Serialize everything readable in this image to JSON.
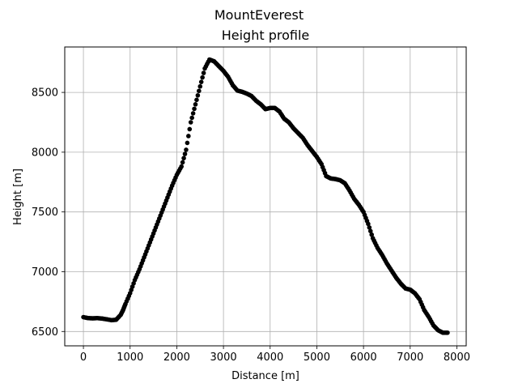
{
  "chart_data": {
    "type": "scatter",
    "suptitle": "MountEverest",
    "title": "Height profile",
    "xlabel": "Distance [m]",
    "ylabel": "Height [m]",
    "xlim": [
      -400,
      8200
    ],
    "ylim": [
      6380,
      8880
    ],
    "xticks": [
      0,
      1000,
      2000,
      3000,
      4000,
      5000,
      6000,
      7000,
      8000
    ],
    "yticks": [
      6500,
      7000,
      7500,
      8000,
      8500
    ],
    "grid": true,
    "legend": "none",
    "marker_color": "#000000",
    "series": [
      {
        "points": [
          [
            0,
            6620
          ],
          [
            100,
            6612
          ],
          [
            200,
            6610
          ],
          [
            300,
            6612
          ],
          [
            400,
            6608
          ],
          [
            500,
            6602
          ],
          [
            600,
            6595
          ],
          [
            700,
            6598
          ],
          [
            800,
            6640
          ],
          [
            850,
            6680
          ],
          [
            900,
            6730
          ],
          [
            1000,
            6820
          ],
          [
            1100,
            6930
          ],
          [
            1200,
            7020
          ],
          [
            1300,
            7120
          ],
          [
            1400,
            7220
          ],
          [
            1500,
            7320
          ],
          [
            1600,
            7420
          ],
          [
            1700,
            7520
          ],
          [
            1800,
            7620
          ],
          [
            1900,
            7720
          ],
          [
            2000,
            7810
          ],
          [
            2100,
            7880
          ],
          [
            2200,
            8020
          ],
          [
            2300,
            8250
          ],
          [
            2400,
            8400
          ],
          [
            2500,
            8550
          ],
          [
            2600,
            8700
          ],
          [
            2700,
            8775
          ],
          [
            2800,
            8760
          ],
          [
            2900,
            8720
          ],
          [
            3000,
            8680
          ],
          [
            3100,
            8630
          ],
          [
            3200,
            8560
          ],
          [
            3300,
            8515
          ],
          [
            3400,
            8505
          ],
          [
            3500,
            8490
          ],
          [
            3600,
            8470
          ],
          [
            3700,
            8430
          ],
          [
            3800,
            8400
          ],
          [
            3900,
            8360
          ],
          [
            4000,
            8370
          ],
          [
            4100,
            8370
          ],
          [
            4200,
            8340
          ],
          [
            4300,
            8280
          ],
          [
            4400,
            8250
          ],
          [
            4500,
            8200
          ],
          [
            4600,
            8160
          ],
          [
            4700,
            8120
          ],
          [
            4800,
            8060
          ],
          [
            4900,
            8010
          ],
          [
            5000,
            7960
          ],
          [
            5100,
            7900
          ],
          [
            5200,
            7800
          ],
          [
            5300,
            7780
          ],
          [
            5400,
            7775
          ],
          [
            5500,
            7765
          ],
          [
            5600,
            7740
          ],
          [
            5700,
            7680
          ],
          [
            5800,
            7610
          ],
          [
            5900,
            7560
          ],
          [
            6000,
            7500
          ],
          [
            6100,
            7400
          ],
          [
            6200,
            7280
          ],
          [
            6300,
            7200
          ],
          [
            6400,
            7140
          ],
          [
            6500,
            7070
          ],
          [
            6600,
            7010
          ],
          [
            6700,
            6950
          ],
          [
            6800,
            6900
          ],
          [
            6900,
            6860
          ],
          [
            7000,
            6850
          ],
          [
            7100,
            6820
          ],
          [
            7200,
            6770
          ],
          [
            7300,
            6680
          ],
          [
            7400,
            6620
          ],
          [
            7500,
            6550
          ],
          [
            7600,
            6510
          ],
          [
            7700,
            6490
          ],
          [
            7800,
            6490
          ]
        ]
      }
    ]
  }
}
